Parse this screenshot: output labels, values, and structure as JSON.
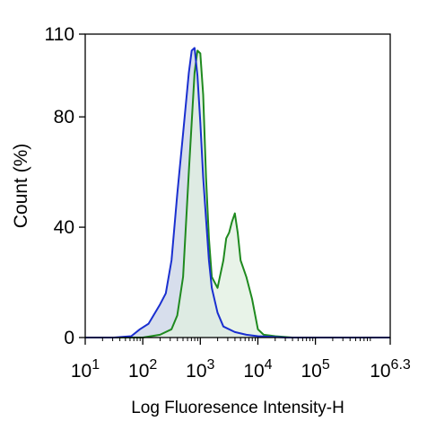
{
  "chart_data": {
    "type": "area",
    "title": "",
    "xlabel": "Log Fluoresence Intensity-H",
    "ylabel": "Count  (%)",
    "xscale": "log",
    "xlim": [
      1,
      6.3
    ],
    "ylim": [
      0,
      110
    ],
    "grid": false,
    "legend": "none",
    "y_ticks": [
      0,
      40,
      80,
      110
    ],
    "x_ticks": [
      {
        "pos": 1,
        "base": "10",
        "exp": "1"
      },
      {
        "pos": 2,
        "base": "10",
        "exp": "2"
      },
      {
        "pos": 3,
        "base": "10",
        "exp": "3"
      },
      {
        "pos": 4,
        "base": "10",
        "exp": "4"
      },
      {
        "pos": 5,
        "base": "10",
        "exp": "5"
      },
      {
        "pos": 6.3,
        "base": "10",
        "exp": "6.3"
      }
    ],
    "series": [
      {
        "color": "#1a2fd0",
        "fill": "#c9d3e6",
        "x": [
          1.0,
          1.5,
          1.8,
          1.95,
          2.1,
          2.3,
          2.4,
          2.5,
          2.6,
          2.7,
          2.8,
          2.85,
          2.9,
          2.95,
          3.0,
          3.05,
          3.1,
          3.15,
          3.2,
          3.3,
          3.4,
          3.6,
          3.8,
          4.0,
          4.5,
          5.0,
          6.3
        ],
        "y": [
          0,
          0,
          0.5,
          3,
          5,
          12,
          16,
          28,
          52,
          74,
          96,
          104,
          105,
          95,
          78,
          58,
          43,
          28,
          18,
          9,
          4,
          2,
          1,
          0.5,
          0,
          0,
          0
        ]
      },
      {
        "color": "#1f8a1f",
        "fill": "#e0efe0",
        "x": [
          1.0,
          2.0,
          2.3,
          2.5,
          2.6,
          2.7,
          2.8,
          2.9,
          2.95,
          3.0,
          3.05,
          3.1,
          3.15,
          3.2,
          3.3,
          3.4,
          3.45,
          3.5,
          3.55,
          3.6,
          3.65,
          3.7,
          3.8,
          3.9,
          4.0,
          4.1,
          4.3,
          4.6,
          5.0,
          6.3
        ],
        "y": [
          0,
          0,
          1,
          3,
          8,
          22,
          60,
          96,
          104,
          103,
          88,
          58,
          36,
          22,
          18,
          28,
          36,
          38,
          42,
          45,
          38,
          28,
          22,
          14,
          3,
          1,
          0.5,
          0,
          0,
          0
        ]
      }
    ]
  }
}
